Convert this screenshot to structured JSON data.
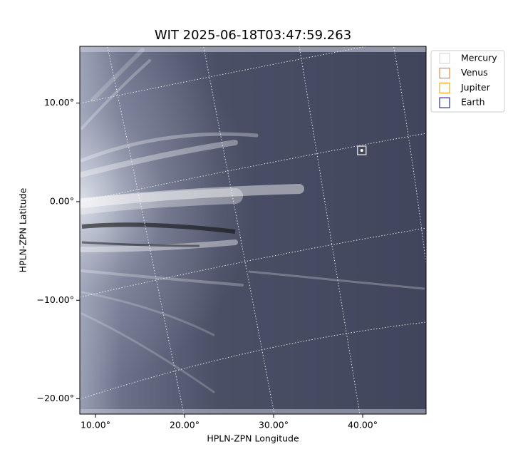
{
  "chart_data": {
    "type": "image",
    "title": "WIT 2025-06-18T03:47:59.263",
    "x_label": "HPLN-ZPN Longitude",
    "y_label": "HPLN-ZPN Latitude",
    "xlim": [
      8.24,
      47.12
    ],
    "ylim": [
      -21.55,
      15.76
    ],
    "xticks": [
      {
        "value": 10,
        "label": "10.00°"
      },
      {
        "value": 20,
        "label": "20.00°"
      },
      {
        "value": 30,
        "label": "30.00°"
      },
      {
        "value": 40,
        "label": "40.00°"
      }
    ],
    "yticks": [
      {
        "value": 10,
        "label": "10.00°"
      },
      {
        "value": 0,
        "label": "0.00°"
      },
      {
        "value": -10,
        "label": "−10.00°"
      },
      {
        "value": -20,
        "label": "−20.00°"
      }
    ],
    "grid": true,
    "legend": "upper right",
    "series": [
      {
        "name": "Mercury",
        "color": "#d3d3d3",
        "x": [
          39.9
        ],
        "y": [
          5.2
        ]
      },
      {
        "name": "Venus",
        "color": "#e07020",
        "x": [],
        "y": []
      },
      {
        "name": "Jupiter",
        "color": "#e0a000",
        "x": [],
        "y": []
      },
      {
        "name": "Earth",
        "color": "#000080",
        "x": [],
        "y": []
      }
    ]
  }
}
